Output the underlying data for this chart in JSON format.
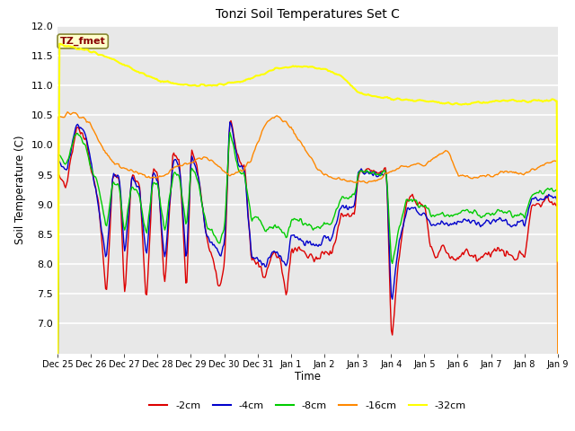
{
  "title": "Tonzi Soil Temperatures Set C",
  "xlabel": "Time",
  "ylabel": "Soil Temperature (C)",
  "ylim": [
    6.5,
    12.0
  ],
  "yticks": [
    7.0,
    7.5,
    8.0,
    8.5,
    9.0,
    9.5,
    10.0,
    10.5,
    11.0,
    11.5,
    12.0
  ],
  "plot_bg_color": "#e8e8e8",
  "fig_bg_color": "#ffffff",
  "annotation_text": "TZ_fmet",
  "annotation_bg": "#ffffcc",
  "annotation_border": "#888833",
  "annotation_fg": "#880000",
  "line_colors": {
    "-2cm": "#dd0000",
    "-4cm": "#0000cc",
    "-8cm": "#00cc00",
    "-16cm": "#ff8800",
    "-32cm": "#ffff00"
  },
  "legend_labels": [
    "-2cm",
    "-4cm",
    "-8cm",
    "-16cm",
    "-32cm"
  ],
  "x_tick_labels": [
    "Dec 25",
    "Dec 26",
    "Dec 27",
    "Dec 28",
    "Dec 29",
    "Dec 30",
    "Dec 31",
    "Jan 1",
    "Jan 2",
    "Jan 3",
    "Jan 4",
    "Jan 5",
    "Jan 6",
    "Jan 7",
    "Jan 8",
    "Jan 9"
  ]
}
